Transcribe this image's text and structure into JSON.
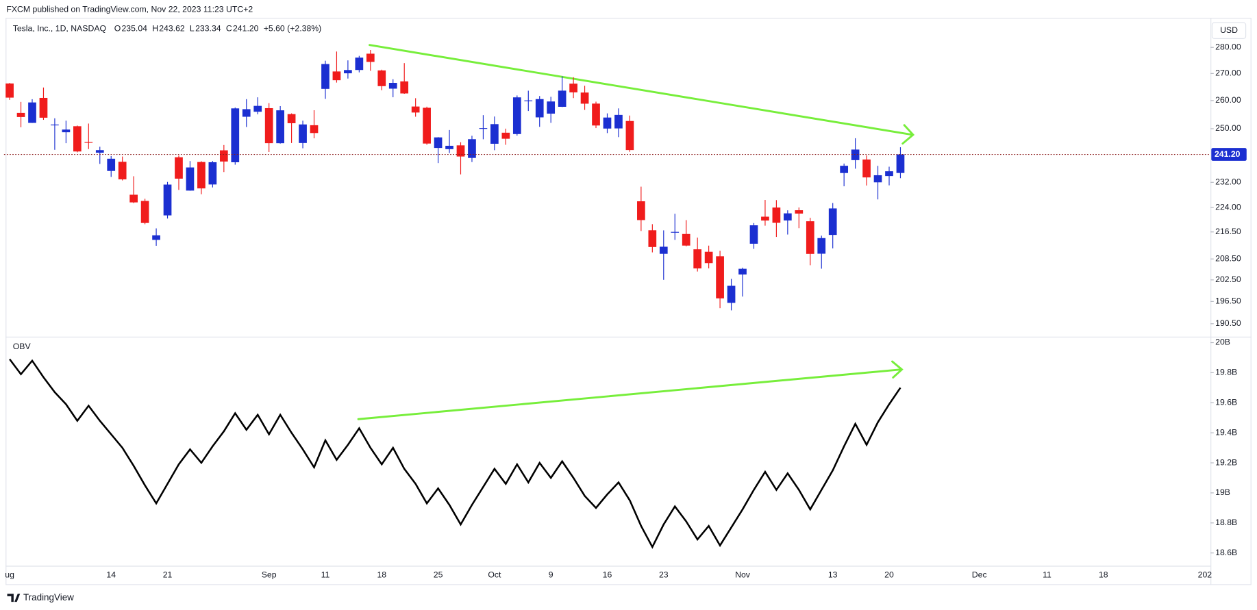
{
  "header": {
    "publisher": "FXCM published on TradingView.com, Nov 22, 2023 11:23 UTC+2",
    "symbol": "Tesla, Inc., 1D, NASDAQ",
    "ohlc": [
      {
        "label": "O",
        "value": "235.04"
      },
      {
        "label": "H",
        "value": "243.62"
      },
      {
        "label": "L",
        "value": "233.34"
      },
      {
        "label": "C",
        "value": "241.20"
      }
    ],
    "change": "+5.60 (+2.38%)",
    "currency": "USD"
  },
  "footer": {
    "brand": "TradingView"
  },
  "chart_data": [
    {
      "type": "candlestick",
      "log_scale": true,
      "up_color": "#1b2fd1",
      "down_color": "#f01c1c",
      "categories": [
        "ug",
        null,
        null,
        null,
        null,
        null,
        null,
        null,
        null,
        "14",
        null,
        null,
        null,
        null,
        "21",
        null,
        null,
        null,
        null,
        null,
        null,
        null,
        null,
        "Sep",
        null,
        null,
        null,
        null,
        "11",
        null,
        null,
        null,
        null,
        "18",
        null,
        null,
        null,
        null,
        "25",
        null,
        null,
        null,
        null,
        "Oct",
        null,
        null,
        null,
        null,
        "9",
        null,
        null,
        null,
        null,
        "16",
        null,
        null,
        null,
        null,
        "23",
        null,
        null,
        null,
        null,
        null,
        null,
        "Nov",
        null,
        null,
        null,
        null,
        null,
        null,
        null,
        "13",
        null,
        null,
        null,
        null,
        "20",
        null,
        null,
        null,
        null,
        null,
        null,
        null,
        "Dec",
        null,
        null,
        null,
        null,
        null,
        "11",
        null,
        null,
        null,
        null,
        "18",
        null,
        null,
        null,
        null,
        null,
        null,
        null,
        null,
        "202"
      ],
      "open": [
        266.26,
        255.57,
        252.04,
        260.97,
        251.45,
        248.77,
        250.87,
        245.4,
        241.77,
        235.7,
        238.73,
        228.02,
        226.06,
        214.12,
        221.55,
        240.25,
        229.34,
        238.66,
        231.31,
        242.58,
        238.58,
        254.2,
        255.98,
        257.26,
        245.0,
        255.14,
        245.07,
        251.22,
        264.27,
        270.76,
        270.07,
        271.32,
        277.55,
        271.16,
        264.35,
        267.04,
        257.85,
        257.4,
        243.38,
        242.98,
        244.26,
        240.02,
        250.0,
        244.81,
        248.61,
        248.14,
        260.0,
        253.98,
        255.31,
        257.75,
        266.2,
        262.92,
        258.9,
        250.05,
        250.1,
        252.7,
        225.95,
        217.01,
        210.0,
        216.5,
        215.88,
        211.32,
        210.6,
        209.28,
        196.12,
        204.04,
        212.97,
        221.15,
        223.98,
        219.98,
        223.15,
        219.75,
        210.03,
        215.6,
        235.03,
        239.29,
        239.49,
        232.0,
        234.04,
        235.04,
        null,
        null,
        null,
        null,
        null,
        null,
        null,
        null,
        null,
        null,
        null,
        null,
        null,
        null,
        null,
        null,
        null,
        null,
        null,
        null,
        null,
        null,
        null,
        null,
        null,
        null,
        null
      ],
      "high": [
        266.47,
        259.52,
        260.49,
        264.77,
        253.65,
        252.81,
        251.1,
        251.8,
        243.79,
        240.66,
        240.5,
        233.97,
        226.74,
        217.58,
        232.13,
        240.82,
        238.98,
        238.92,
        239.0,
        244.38,
        257.48,
        260.51,
        261.18,
        259.08,
        258.0,
        255.39,
        252.81,
        256.52,
        274.85,
        278.39,
        274.98,
        276.71,
        278.98,
        271.44,
        267.85,
        273.93,
        260.86,
        257.79,
        247.1,
        249.55,
        245.33,
        247.55,
        254.77,
        254.28,
        250.02,
        261.86,
        263.6,
        261.65,
        261.36,
        268.94,
        268.6,
        265.41,
        259.6,
        255.4,
        257.18,
        254.63,
        230.61,
        218.86,
        216.98,
        222.05,
        220.1,
        214.8,
        212.41,
        210.88,
        202.8,
        205.99,
        219.2,
        226.37,
        226.32,
        223.12,
        224.0,
        220.8,
        215.38,
        225.4,
        238.14,
        246.7,
        240.88,
        237.39,
        237.1,
        243.62,
        null,
        null,
        null,
        null,
        null,
        null,
        null,
        null,
        null,
        null,
        null,
        null,
        null,
        null,
        null,
        null,
        null,
        null,
        null,
        null,
        null,
        null,
        null,
        null,
        null,
        null,
        null
      ],
      "low": [
        260.25,
        250.49,
        252.0,
        253.11,
        242.76,
        245.01,
        241.9,
        243.0,
        238.02,
        233.75,
        232.61,
        225.38,
        218.83,
        212.36,
        220.58,
        229.55,
        229.29,
        228.18,
        230.35,
        235.35,
        237.77,
        250.59,
        255.05,
        242.01,
        244.86,
        245.06,
        243.27,
        246.67,
        260.61,
        266.6,
        268.1,
        270.42,
        271.0,
        263.76,
        261.2,
        262.46,
        254.21,
        244.48,
        238.31,
        241.66,
        234.58,
        238.65,
        246.35,
        242.62,
        244.45,
        247.6,
        256.25,
        250.65,
        252.05,
        257.65,
        260.9,
        256.63,
        250.22,
        248.48,
        247.08,
        242.08,
        216.78,
        210.42,
        202.51,
        214.11,
        212.2,
        204.88,
        205.77,
        194.67,
        194.07,
        197.85,
        211.45,
        218.4,
        215.0,
        215.72,
        217.64,
        206.68,
        205.69,
        211.61,
        230.72,
        236.45,
        230.96,
        226.54,
        231.02,
        233.34,
        null,
        null,
        null,
        null,
        null,
        null,
        null,
        null,
        null,
        null,
        null,
        null,
        null,
        null,
        null,
        null,
        null,
        null,
        null,
        null,
        null,
        null,
        null,
        null,
        null,
        null,
        null
      ],
      "close": [
        261.07,
        254.11,
        259.32,
        253.86,
        251.45,
        249.7,
        242.19,
        245.34,
        242.65,
        239.76,
        232.96,
        225.6,
        219.22,
        215.49,
        231.28,
        233.19,
        236.86,
        230.04,
        238.59,
        238.82,
        257.18,
        256.9,
        258.08,
        245.01,
        256.49,
        251.92,
        251.49,
        248.5,
        273.58,
        267.48,
        271.3,
        276.04,
        274.39,
        265.28,
        266.5,
        262.59,
        255.7,
        244.88,
        246.99,
        244.12,
        240.5,
        246.38,
        250.22,
        251.6,
        246.53,
        261.16,
        260.05,
        260.53,
        259.67,
        263.62,
        262.99,
        258.87,
        251.12,
        253.92,
        254.85,
        242.68,
        220.11,
        211.99,
        212.08,
        216.52,
        212.42,
        205.76,
        207.3,
        197.36,
        200.84,
        205.66,
        218.51,
        219.96,
        219.27,
        222.18,
        222.11,
        209.98,
        214.65,
        223.71,
        237.41,
        242.84,
        233.59,
        234.3,
        235.6,
        241.2,
        null,
        null,
        null,
        null,
        null,
        null,
        null,
        null,
        null,
        null,
        null,
        null,
        null,
        null,
        null,
        null,
        null,
        null,
        null,
        null,
        null,
        null,
        null,
        null,
        null,
        null,
        null
      ],
      "ylim": [
        187.1,
        291.8
      ],
      "yticks": [
        {
          "value": 280,
          "label": "280.00"
        },
        {
          "value": 270,
          "label": "270.00"
        },
        {
          "value": 260,
          "label": "260.00"
        },
        {
          "value": 250,
          "label": "250.00"
        },
        {
          "value": 232,
          "label": "232.00"
        },
        {
          "value": 224,
          "label": "224.00"
        },
        {
          "value": 216.5,
          "label": "216.50"
        },
        {
          "value": 208.5,
          "label": "208.50"
        },
        {
          "value": 202.5,
          "label": "202.50"
        },
        {
          "value": 196.5,
          "label": "196.50"
        },
        {
          "value": 190.5,
          "label": "190.50"
        }
      ],
      "last_price": {
        "value": 241.2,
        "label": "241.20"
      },
      "last_price_color": "#1b2fd1"
    },
    {
      "type": "line",
      "title": "OBV",
      "color": "#000000",
      "values": [
        19.89,
        19.79,
        19.88,
        19.77,
        19.67,
        19.59,
        19.48,
        19.58,
        19.48,
        19.39,
        19.3,
        19.18,
        19.05,
        18.93,
        19.06,
        19.19,
        19.29,
        19.2,
        19.31,
        19.41,
        19.53,
        19.42,
        19.52,
        19.39,
        19.52,
        19.4,
        19.29,
        19.17,
        19.35,
        19.22,
        19.32,
        19.43,
        19.3,
        19.19,
        19.3,
        19.16,
        19.06,
        18.93,
        19.03,
        18.92,
        18.79,
        18.92,
        19.04,
        19.16,
        19.06,
        19.19,
        19.07,
        19.2,
        19.1,
        19.21,
        19.1,
        18.98,
        18.9,
        18.99,
        19.07,
        18.95,
        18.78,
        18.64,
        18.79,
        18.91,
        18.81,
        18.69,
        18.78,
        18.65,
        18.77,
        18.89,
        19.02,
        19.14,
        19.02,
        19.13,
        19.02,
        18.89,
        19.02,
        19.15,
        19.31,
        19.46,
        19.32,
        19.47,
        19.59,
        19.7,
        null,
        null,
        null,
        null,
        null,
        null,
        null,
        null,
        null,
        null,
        null,
        null,
        null,
        null,
        null,
        null,
        null,
        null,
        null,
        null,
        null,
        null,
        null,
        null,
        null,
        null,
        null
      ],
      "ylim": [
        18.52,
        20.04
      ],
      "yticks": [
        {
          "value": 20,
          "label": "20B"
        },
        {
          "value": 19.8,
          "label": "19.8B"
        },
        {
          "value": 19.6,
          "label": "19.6B"
        },
        {
          "value": 19.4,
          "label": "19.4B"
        },
        {
          "value": 19.2,
          "label": "19.2B"
        },
        {
          "value": 19,
          "label": "19B"
        },
        {
          "value": 18.8,
          "label": "18.8B"
        },
        {
          "value": 18.6,
          "label": "18.6B"
        }
      ]
    }
  ]
}
